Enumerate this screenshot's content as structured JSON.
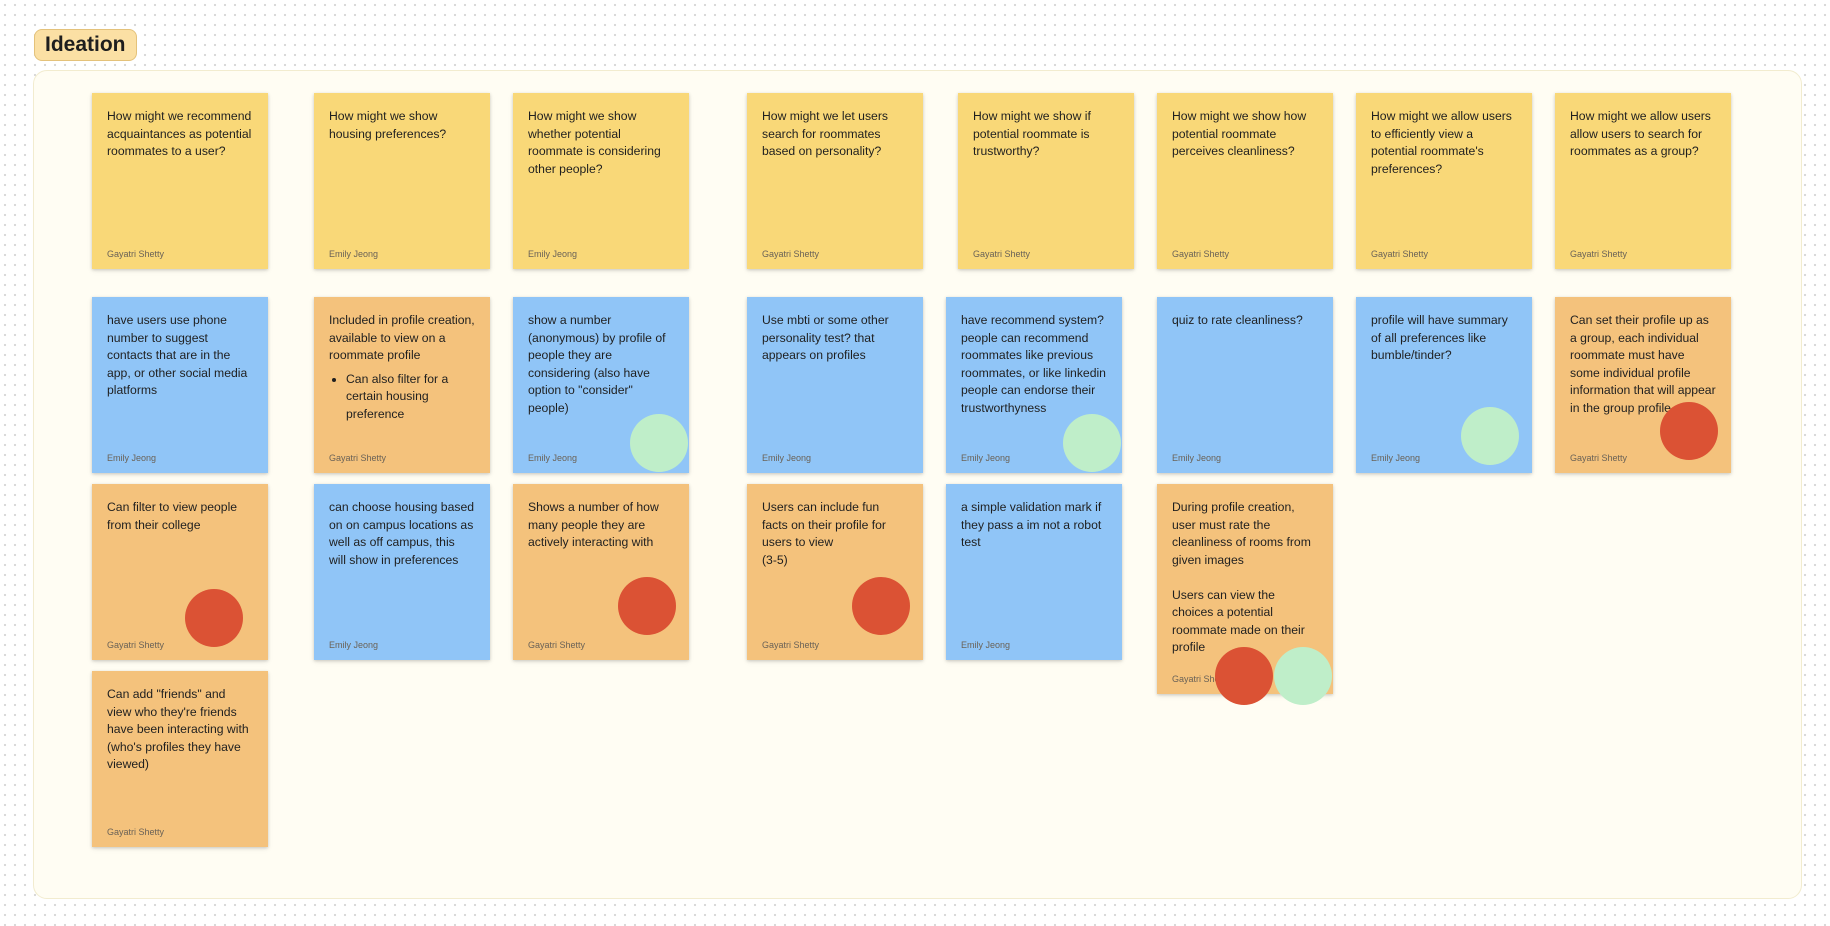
{
  "section": {
    "title": "Ideation"
  },
  "notes": {
    "hmw_recommend": {
      "text": "How might we recommend acquaintances as potential roommates to a user?",
      "author": "Gayatri Shetty"
    },
    "hmw_housing": {
      "text": "How might we show housing preferences?",
      "author": "Emily Jeong"
    },
    "hmw_considering": {
      "text": "How might we show whether potential roommate is considering other people?",
      "author": "Emily Jeong"
    },
    "hmw_personality": {
      "text": "How might we let users search for roommates based on personality?",
      "author": "Gayatri Shetty"
    },
    "hmw_trustworthy": {
      "text": "How might we show if potential roommate is trustworthy?",
      "author": "Gayatri Shetty"
    },
    "hmw_cleanliness": {
      "text": "How might we show how potential roommate perceives cleanliness?",
      "author": "Gayatri Shetty"
    },
    "hmw_view_prefs": {
      "text": "How might we allow users to efficiently view a potential roommate's preferences?",
      "author": "Gayatri Shetty"
    },
    "hmw_group": {
      "text": "How might we allow users allow users to search for roommates as a group?",
      "author": "Gayatri Shetty"
    },
    "idea_phone": {
      "text": "have users use phone number to suggest contacts that are in the app, or other social media platforms",
      "author": "Emily Jeong"
    },
    "idea_profile_creation": {
      "text": "Included in profile creation, available to view on a roommate profile",
      "bullets": [
        "Can also filter for a certain housing preference"
      ],
      "author": "Gayatri Shetty"
    },
    "idea_number_anon": {
      "text": "show a number (anonymous) by profile of people they are considering (also have option to \"consider\" people)",
      "author": "Emily Jeong"
    },
    "idea_mbti": {
      "text": "Use mbti or some other personality test? that appears on profiles",
      "author": "Emily Jeong"
    },
    "idea_recommend_system": {
      "text": "have recommend system? people can recommend roommates like previous roommates, or like linkedin people can endorse their trustworthyness",
      "author": "Emily Jeong"
    },
    "idea_quiz": {
      "text": "quiz to rate cleanliness?",
      "author": "Emily Jeong"
    },
    "idea_summary": {
      "text": "profile will have summary of all preferences like bumble/tinder?",
      "author": "Emily Jeong"
    },
    "idea_group_profile": {
      "text": "Can set their profile up as a group, each individual roommate must have some individual profile information that will appear in the group profile",
      "author": "Gayatri Shetty"
    },
    "idea_college": {
      "text": "Can filter to view people from their college",
      "author": "Gayatri Shetty"
    },
    "idea_campus": {
      "text": "can choose housing based on on campus locations as well as off campus, this will show in preferences",
      "author": "Emily Jeong"
    },
    "idea_interacting": {
      "text": "Shows a number of how many people they are actively interacting with",
      "author": "Gayatri Shetty"
    },
    "idea_fun_facts": {
      "text": "Users can include fun facts on their profile for users to view",
      "extra": "(3-5)",
      "author": "Gayatri Shetty"
    },
    "idea_validation": {
      "text": "a simple validation mark if they pass a im not a robot test",
      "author": "Emily Jeong"
    },
    "idea_rate_rooms": {
      "text": "During profile creation, user must rate the cleanliness of rooms from given images",
      "text2": "Users can view the choices a potential roommate made on their profile",
      "author": "Gayatri Shetty"
    },
    "idea_friends": {
      "text": "Can add \"friends\" and view who they're friends have been interacting with (who's profiles they have viewed)",
      "author": "Gayatri Shetty"
    }
  },
  "colors": {
    "yellow_note": "#f9d878",
    "blue_note": "#90c5f7",
    "orange_note": "#f4c27c",
    "red_vote": "#db5234",
    "green_vote": "#bfeec9",
    "section_bg": "#fffdf3",
    "label_bg": "#fbe0a4"
  }
}
